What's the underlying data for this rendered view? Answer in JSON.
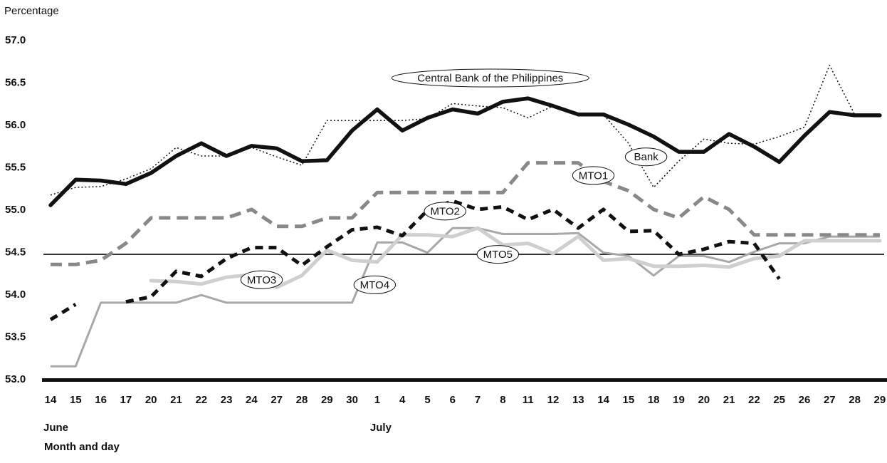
{
  "chart_data": {
    "type": "line",
    "ylabel": "Percentage",
    "xlabel": "Month and day",
    "month_labels": [
      {
        "label": "June",
        "at": 0
      },
      {
        "label": "July",
        "at": 13
      }
    ],
    "categories": [
      "14",
      "15",
      "16",
      "17",
      "20",
      "21",
      "22",
      "23",
      "24",
      "27",
      "28",
      "29",
      "30",
      "1",
      "4",
      "5",
      "6",
      "7",
      "8",
      "11",
      "12",
      "13",
      "14",
      "15",
      "18",
      "19",
      "20",
      "21",
      "22",
      "25",
      "26",
      "27",
      "28",
      "29"
    ],
    "ylim": [
      53.0,
      57.0
    ],
    "yticks": [
      "53.0",
      "53.5",
      "54.0",
      "54.5",
      "55.0",
      "55.5",
      "56.0",
      "56.5",
      "57.0"
    ],
    "grid": false,
    "series": [
      {
        "name": "Central Bank of the Philippines",
        "style": "solid-thick",
        "color": "#111111",
        "values": [
          55.05,
          55.35,
          55.34,
          55.3,
          55.43,
          55.63,
          55.78,
          55.63,
          55.75,
          55.72,
          55.57,
          55.58,
          55.93,
          56.18,
          55.93,
          56.08,
          56.18,
          56.13,
          56.27,
          56.31,
          56.22,
          56.12,
          56.12,
          56.0,
          55.86,
          55.68,
          55.68,
          55.89,
          55.74,
          55.56,
          55.87,
          56.15,
          56.11,
          56.11
        ]
      },
      {
        "name": "Bank",
        "style": "dotted",
        "color": "#111111",
        "values": [
          55.17,
          55.26,
          55.27,
          55.36,
          55.48,
          55.73,
          55.63,
          55.63,
          55.73,
          55.62,
          55.52,
          56.05,
          56.05,
          56.05,
          56.05,
          56.07,
          56.25,
          56.22,
          56.2,
          56.08,
          56.22,
          56.12,
          56.12,
          55.78,
          55.26,
          55.57,
          55.83,
          55.78,
          55.77,
          55.86,
          55.97,
          56.7,
          56.12,
          56.12
        ]
      },
      {
        "name": "MTO1",
        "style": "dashed-gray",
        "color": "#888888",
        "values": [
          54.35,
          54.35,
          54.4,
          54.6,
          54.9,
          54.9,
          54.9,
          54.9,
          55.0,
          54.8,
          54.8,
          54.9,
          54.9,
          55.2,
          55.2,
          55.2,
          55.2,
          55.2,
          55.2,
          55.55,
          55.55,
          55.55,
          55.33,
          55.22,
          55.0,
          54.9,
          55.15,
          55.0,
          54.7,
          54.7,
          54.7,
          54.7,
          54.7,
          54.7
        ]
      },
      {
        "name": "MTO2",
        "style": "dashed-black",
        "color": "#111111",
        "values": [
          53.7,
          53.88,
          null,
          53.91,
          53.97,
          54.27,
          54.21,
          54.42,
          54.55,
          54.55,
          54.34,
          54.56,
          54.76,
          54.79,
          54.69,
          54.99,
          55.1,
          55.0,
          55.03,
          54.88,
          55.0,
          54.78,
          55.0,
          54.74,
          54.75,
          54.47,
          54.53,
          54.62,
          54.6,
          54.18,
          null,
          null,
          null,
          null
        ]
      },
      {
        "name": "MTO3",
        "style": "solid-lightgray",
        "color": "#cfcfcf",
        "values": [
          null,
          null,
          null,
          null,
          54.16,
          54.15,
          54.12,
          54.2,
          54.23,
          54.08,
          54.22,
          54.52,
          54.4,
          54.38,
          54.7,
          54.7,
          54.68,
          54.78,
          54.58,
          54.6,
          54.48,
          54.68,
          54.4,
          54.42,
          54.33,
          54.33,
          54.34,
          54.32,
          54.42,
          54.45,
          54.63,
          54.63,
          54.63,
          54.63
        ]
      },
      {
        "name": "MTO4",
        "style": "solid-gray",
        "color": "#a8a8a8",
        "values": [
          53.15,
          53.15,
          53.9,
          53.9,
          53.9,
          53.9,
          53.99,
          53.9,
          53.9,
          53.9,
          53.9,
          53.9,
          53.9,
          54.61,
          54.61,
          54.49,
          54.78,
          54.78,
          54.71,
          54.71,
          54.71,
          54.72,
          54.49,
          54.45,
          54.22,
          54.45,
          54.45,
          54.38,
          54.5,
          54.6,
          54.6,
          54.68,
          54.68,
          54.68
        ]
      },
      {
        "name": "MTO5",
        "style": "thin-solid",
        "color": "#111111",
        "values": [
          54.47,
          54.47,
          54.47,
          54.47,
          54.47,
          54.47,
          54.47,
          54.47,
          54.47,
          54.47,
          54.47,
          54.47,
          54.47,
          54.47,
          54.47,
          54.47,
          54.47,
          54.47,
          54.47,
          54.47,
          54.47,
          54.47,
          54.47,
          54.47,
          54.47,
          54.47,
          54.47,
          54.47,
          54.47,
          54.47,
          54.47,
          54.47,
          54.47,
          54.47
        ]
      }
    ],
    "annotations": [
      {
        "text": "Central Bank of the Philippines",
        "series": "Central Bank of the Philippines",
        "x_index": 17.5,
        "y": 56.55
      },
      {
        "text": "Bank",
        "series": "Bank",
        "x_index": 23.7,
        "y": 55.62
      },
      {
        "text": "MTO1",
        "series": "MTO1",
        "x_index": 21.6,
        "y": 55.4
      },
      {
        "text": "MTO2",
        "series": "MTO2",
        "x_index": 15.7,
        "y": 54.98
      },
      {
        "text": "MTO3",
        "series": "MTO3",
        "x_index": 8.4,
        "y": 54.17
      },
      {
        "text": "MTO4",
        "series": "MTO4",
        "x_index": 12.9,
        "y": 54.11
      },
      {
        "text": "MTO5",
        "series": "MTO5",
        "x_index": 17.8,
        "y": 54.47
      }
    ]
  }
}
